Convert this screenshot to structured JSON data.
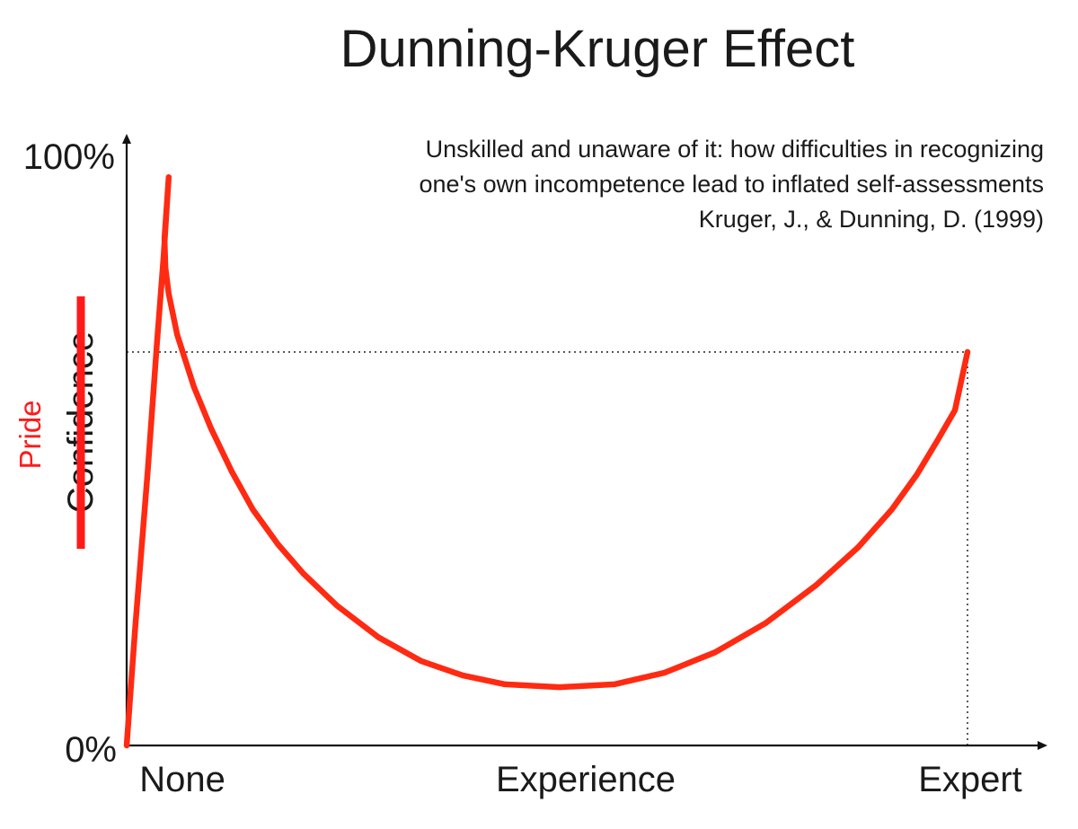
{
  "chart_data": {
    "type": "line",
    "title": "Dunning-Kruger Effect",
    "subtitle_lines": [
      "Unskilled and unaware of it: how difficulties in recognizing",
      "one's own incompetence lead to inflated self-assessments",
      "Kruger, J., & Dunning, D. (1999)"
    ],
    "xlabel": "Experience",
    "x_tick_labels": [
      "None",
      "Expert"
    ],
    "ylabel": "Confidence",
    "ylabel_strikethrough": true,
    "ylabel_replacement": "Pride",
    "y_tick_labels": [
      "0%",
      "100%"
    ],
    "ylim": [
      0,
      100
    ],
    "xlim": [
      0,
      100
    ],
    "series": [
      {
        "color": "#ff2a12",
        "points": [
          [
            0.0,
            0.0
          ],
          [
            1.0,
            20.0
          ],
          [
            2.5,
            47.0
          ],
          [
            3.6,
            69.0
          ],
          [
            4.4,
            84.0
          ],
          [
            5.0,
            97.5
          ],
          [
            4.5,
            87.0
          ],
          [
            4.6,
            82.0
          ],
          [
            5.0,
            77.5
          ],
          [
            6.0,
            70.5
          ],
          [
            8.0,
            61.5
          ],
          [
            10.0,
            54.5
          ],
          [
            12.5,
            47.0
          ],
          [
            15.0,
            40.5
          ],
          [
            18.0,
            34.5
          ],
          [
            21.0,
            29.5
          ],
          [
            25.0,
            24.0
          ],
          [
            30.0,
            18.5
          ],
          [
            35.0,
            14.5
          ],
          [
            40.0,
            12.0
          ],
          [
            45.0,
            10.5
          ],
          [
            51.5,
            10.0
          ],
          [
            58.0,
            10.5
          ],
          [
            64.0,
            12.5
          ],
          [
            70.0,
            16.0
          ],
          [
            76.0,
            21.0
          ],
          [
            82.0,
            27.5
          ],
          [
            87.0,
            34.0
          ],
          [
            91.0,
            40.5
          ],
          [
            94.0,
            46.5
          ],
          [
            96.5,
            52.5
          ],
          [
            98.5,
            57.5
          ],
          [
            100.0,
            67.5
          ]
        ]
      }
    ],
    "reference_lines": [
      {
        "orientation": "horizontal",
        "y": 67.5,
        "from_x": 0,
        "to_x": 100,
        "style": "dotted"
      },
      {
        "orientation": "vertical",
        "x": 100,
        "from_y": 0,
        "to_y": 67.5,
        "style": "dotted"
      }
    ],
    "grid": false,
    "legend": "none",
    "colors": {
      "curve": "#ff2a12",
      "axis": "#111111",
      "annotation": "#ff1a1a",
      "strike": "#ff1a1a",
      "text": "#1a1a1a",
      "reference": "#333333"
    }
  }
}
